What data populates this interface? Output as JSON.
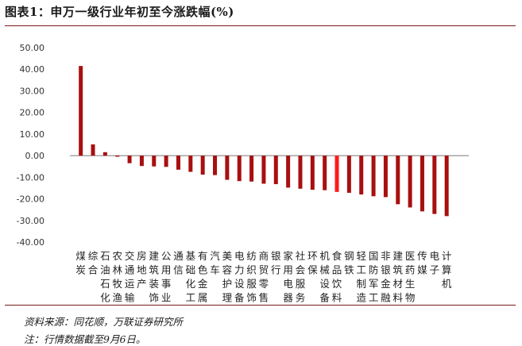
{
  "header": {
    "title": "图表1：申万一级行业年初至今涨跌幅(%)"
  },
  "footer": {
    "source": "资料来源：同花顺，万联证券研究所",
    "note": "注：行情数据截至9月6日。"
  },
  "colors": {
    "bar": "#a80f0f",
    "highlight": "#ff1a1a",
    "rule": "#7a1a1a"
  },
  "chart_data": {
    "type": "bar",
    "categories": [
      "煤炭",
      "综合",
      "石油石化",
      "农林牧渔",
      "交通运输",
      "房地产",
      "建筑装饰",
      "公用事业",
      "通信",
      "基础化工",
      "有色金属",
      "汽车",
      "美容护理",
      "电力设备",
      "纺织服饰",
      "商贸零售",
      "银行",
      "家用电器",
      "社会服务",
      "环保",
      "机械设备",
      "食品饮料",
      "钢铁",
      "轻工制造",
      "国防军工",
      "非银金融",
      "建筑材料",
      "医药生物",
      "传媒",
      "电子",
      "计算机"
    ],
    "values": [
      41.5,
      5.2,
      1.6,
      -0.5,
      -3.5,
      -4.8,
      -5.0,
      -5.2,
      -6.5,
      -7.5,
      -8.8,
      -9.0,
      -11.2,
      -11.8,
      -12.0,
      -13.0,
      -13.2,
      -14.8,
      -15.3,
      -15.8,
      -16.0,
      -16.8,
      -17.2,
      -18.0,
      -18.8,
      -19.2,
      -22.5,
      -24.0,
      -25.8,
      -27.0,
      -28.0
    ],
    "highlight_index": 21,
    "yticks": [
      "50.00",
      "40.00",
      "30.00",
      "20.00",
      "10.00",
      "0.00",
      "-10.00",
      "-20.00",
      "-30.00",
      "-40.00"
    ],
    "ylim": [
      -40,
      50
    ],
    "title": "",
    "xlabel": "",
    "ylabel": "",
    "grid": false,
    "legend": "none"
  }
}
